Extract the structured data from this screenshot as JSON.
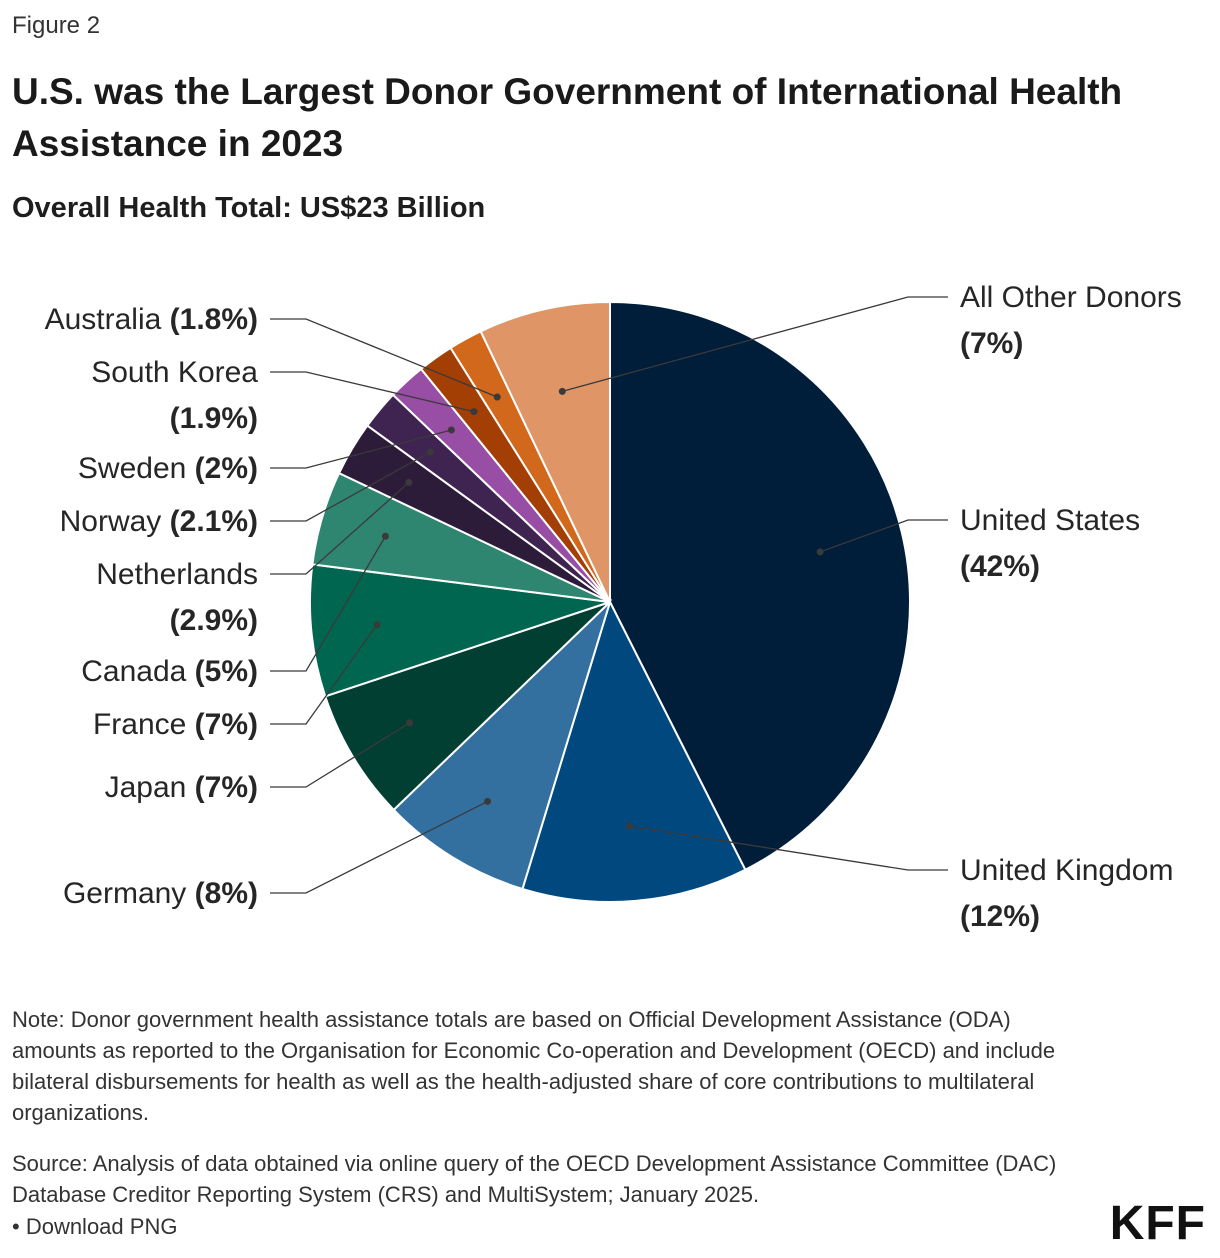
{
  "figure_label": "Figure 2",
  "title": "U.S. was the Largest Donor Government of International Health Assistance in 2023",
  "subtitle": "Overall Health Total: US$23 Billion",
  "chart_data": {
    "type": "pie",
    "unit": "percent of overall health total",
    "slices": [
      {
        "name": "United States",
        "label": "(42%)",
        "value": 42,
        "color": "#001e3a"
      },
      {
        "name": "United Kingdom",
        "label": "(12%)",
        "value": 12,
        "color": "#00487e"
      },
      {
        "name": "Germany",
        "label": "(8%)",
        "value": 8,
        "color": "#3370a0"
      },
      {
        "name": "Japan",
        "label": "(7%)",
        "value": 7,
        "color": "#003f31"
      },
      {
        "name": "France",
        "label": "(7%)",
        "value": 7,
        "color": "#006650"
      },
      {
        "name": "Canada",
        "label": "(5%)",
        "value": 5,
        "color": "#2f8670"
      },
      {
        "name": "Netherlands",
        "label": "(2.9%)",
        "value": 2.9,
        "color": "#2d1b3a"
      },
      {
        "name": "Norway",
        "label": "(2.1%)",
        "value": 2.1,
        "color": "#3f2451"
      },
      {
        "name": "Sweden",
        "label": "(2%)",
        "value": 2,
        "color": "#974ea4"
      },
      {
        "name": "South Korea",
        "label": "(1.9%)",
        "value": 1.9,
        "color": "#a33f04"
      },
      {
        "name": "Australia",
        "label": "(1.8%)",
        "value": 1.8,
        "color": "#d1681c"
      },
      {
        "name": "All Other Donors",
        "label": "(7%)",
        "value": 7,
        "color": "#df9565"
      }
    ]
  },
  "note": "Note: Donor government health assistance totals are based on Official Development Assistance (ODA) amounts as reported to the Organisation for Economic Co-operation and Development (OECD) and include bilateral disbursements for health as well as the health-adjusted share of core contributions to multilateral organizations.",
  "source": "Source: Analysis of data obtained via online query of the OECD Development Assistance Committee (DAC) Database Creditor Reporting System (CRS) and MultiSystem; January 2025.",
  "download": "• Download PNG",
  "logo": "KFF"
}
